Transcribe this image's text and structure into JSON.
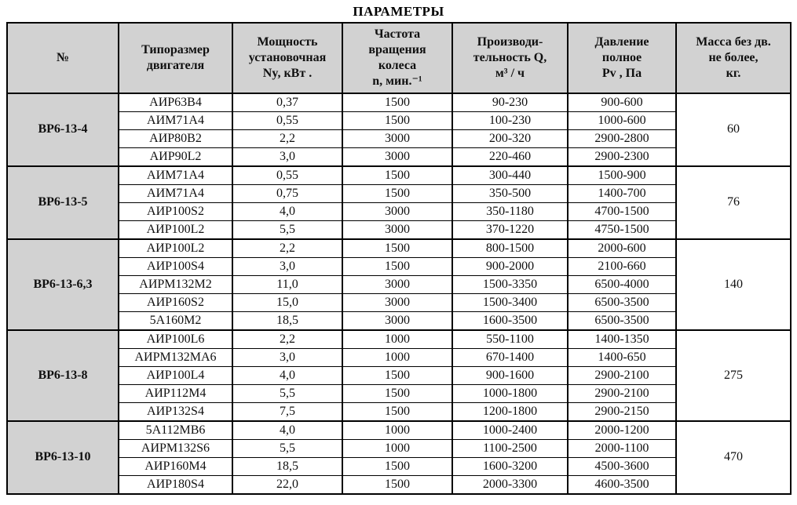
{
  "title": "ПАРАМЕТРЫ",
  "table": {
    "headers": [
      "№",
      "Типоразмер\nдвигателя",
      "Мощность\nустановочная\nNy, кВт .",
      "Частота\nвращения\nколеса\nn, мин.⁻¹",
      "Производи-\nтельность Q,\nм³ / ч",
      "Давление\nполное\nPv , Па",
      "Масса без дв.\nне более,\nкг."
    ],
    "groups": [
      {
        "name": "ВР6-13-4",
        "mass": "60",
        "rows": [
          [
            "АИР63В4",
            "0,37",
            "1500",
            "90-230",
            "900-600"
          ],
          [
            "АИМ71А4",
            "0,55",
            "1500",
            "100-230",
            "1000-600"
          ],
          [
            "АИР80В2",
            "2,2",
            "3000",
            "200-320",
            "2900-2800"
          ],
          [
            "АИР90L2",
            "3,0",
            "3000",
            "220-460",
            "2900-2300"
          ]
        ]
      },
      {
        "name": "ВР6-13-5",
        "mass": "76",
        "rows": [
          [
            "АИМ71А4",
            "0,55",
            "1500",
            "300-440",
            "1500-900"
          ],
          [
            "АИМ71А4",
            "0,75",
            "1500",
            "350-500",
            "1400-700"
          ],
          [
            "АИР100S2",
            "4,0",
            "3000",
            "350-1180",
            "4700-1500"
          ],
          [
            "АИР100L2",
            "5,5",
            "3000",
            "370-1220",
            "4750-1500"
          ]
        ]
      },
      {
        "name": "ВР6-13-6,3",
        "mass": "140",
        "rows": [
          [
            "АИР100L2",
            "2,2",
            "1500",
            "800-1500",
            "2000-600"
          ],
          [
            "АИР100S4",
            "3,0",
            "1500",
            "900-2000",
            "2100-660"
          ],
          [
            "АИРМ132М2",
            "11,0",
            "3000",
            "1500-3350",
            "6500-4000"
          ],
          [
            "АИР160S2",
            "15,0",
            "3000",
            "1500-3400",
            "6500-3500"
          ],
          [
            "5А160М2",
            "18,5",
            "3000",
            "1600-3500",
            "6500-3500"
          ]
        ]
      },
      {
        "name": "ВР6-13-8",
        "mass": "275",
        "rows": [
          [
            "АИР100L6",
            "2,2",
            "1000",
            "550-1100",
            "1400-1350"
          ],
          [
            "АИРМ132МА6",
            "3,0",
            "1000",
            "670-1400",
            "1400-650"
          ],
          [
            "АИР100L4",
            "4,0",
            "1500",
            "900-1600",
            "2900-2100"
          ],
          [
            "АИР112М4",
            "5,5",
            "1500",
            "1000-1800",
            "2900-2100"
          ],
          [
            "АИР132S4",
            "7,5",
            "1500",
            "1200-1800",
            "2900-2150"
          ]
        ]
      },
      {
        "name": "ВР6-13-10",
        "mass": "470",
        "rows": [
          [
            "5А112МВ6",
            "4,0",
            "1000",
            "1000-2400",
            "2000-1200"
          ],
          [
            "АИРМ132S6",
            "5,5",
            "1000",
            "1100-2500",
            "2000-1100"
          ],
          [
            "АИР160М4",
            "18,5",
            "1500",
            "1600-3200",
            "4500-3600"
          ],
          [
            "АИР180S4",
            "22,0",
            "1500",
            "2000-3300",
            "4600-3500"
          ]
        ]
      }
    ]
  }
}
